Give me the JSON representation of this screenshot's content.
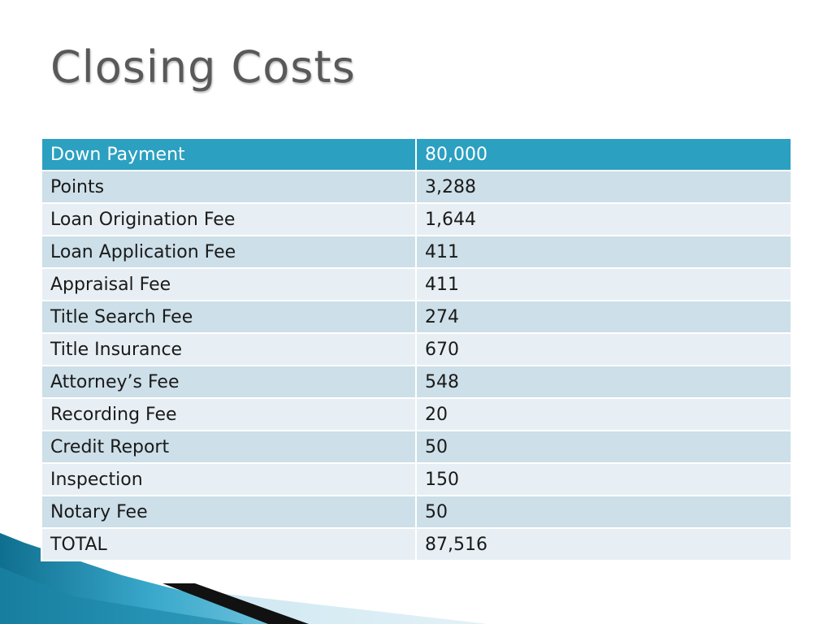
{
  "slide": {
    "title": "Closing Costs"
  },
  "table": {
    "header": [
      "Down Payment",
      "80,000"
    ],
    "rows": [
      [
        "Points",
        "3,288"
      ],
      [
        "Loan Origination Fee",
        "1,644"
      ],
      [
        "Loan Application Fee",
        "411"
      ],
      [
        "Appraisal Fee",
        "411"
      ],
      [
        "Title Search Fee",
        "274"
      ],
      [
        "Title Insurance",
        "670"
      ],
      [
        "Attorney’s Fee",
        "548"
      ],
      [
        "Recording Fee",
        "20"
      ],
      [
        "Credit Report",
        "50"
      ],
      [
        "Inspection",
        "150"
      ],
      [
        "Notary Fee",
        "50"
      ],
      [
        "TOTAL",
        "87,516"
      ]
    ]
  },
  "colors": {
    "header_bg": "#2ba0c1",
    "row_odd_bg": "#cddfe8",
    "row_even_bg": "#e7eff4",
    "title_color": "#595959"
  }
}
